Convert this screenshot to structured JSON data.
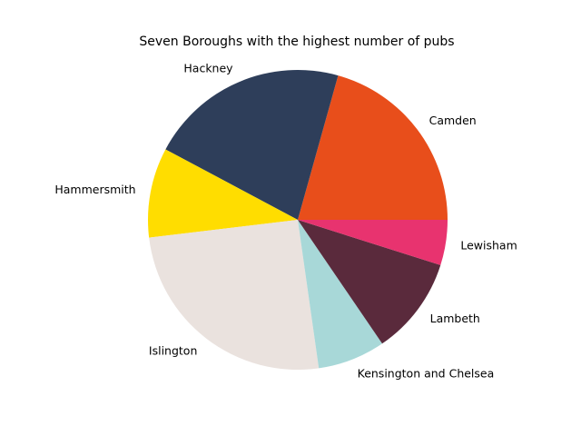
{
  "chart_data": {
    "type": "pie",
    "title": "Seven Boroughs with the highest number of pubs",
    "start_angle_deg": 0,
    "direction": "counterclockwise",
    "categories": [
      "Camden",
      "Hackney",
      "Hammersmith",
      "Islington",
      "Kensington and Chelsea",
      "Lambeth",
      "Lewisham"
    ],
    "values": [
      20.7,
      21.6,
      9.7,
      25.4,
      7.3,
      10.6,
      4.9
    ],
    "colors": [
      "#E84E1B",
      "#2E3E5A",
      "#FFDD00",
      "#EAE2DE",
      "#A8D8D8",
      "#5A2A3C",
      "#E8336F"
    ]
  }
}
